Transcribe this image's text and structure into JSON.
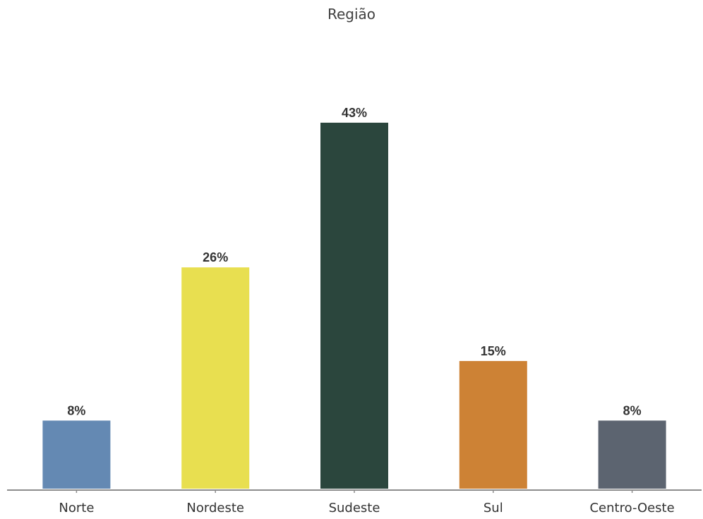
{
  "chart_data": {
    "type": "bar",
    "title": "Região",
    "xlabel": "",
    "ylabel": "",
    "categories": [
      "Norte",
      "Nordeste",
      "Sudeste",
      "Sul",
      "Centro-Oeste"
    ],
    "values": [
      8,
      26,
      43,
      15,
      8
    ],
    "value_labels": [
      "8%",
      "26%",
      "43%",
      "15%",
      "8%"
    ],
    "colors": [
      "#6489b3",
      "#e8df50",
      "#2b463d",
      "#cd8235",
      "#5c6470"
    ],
    "ylim": [
      0,
      43
    ],
    "grid": false,
    "legend": "none"
  }
}
